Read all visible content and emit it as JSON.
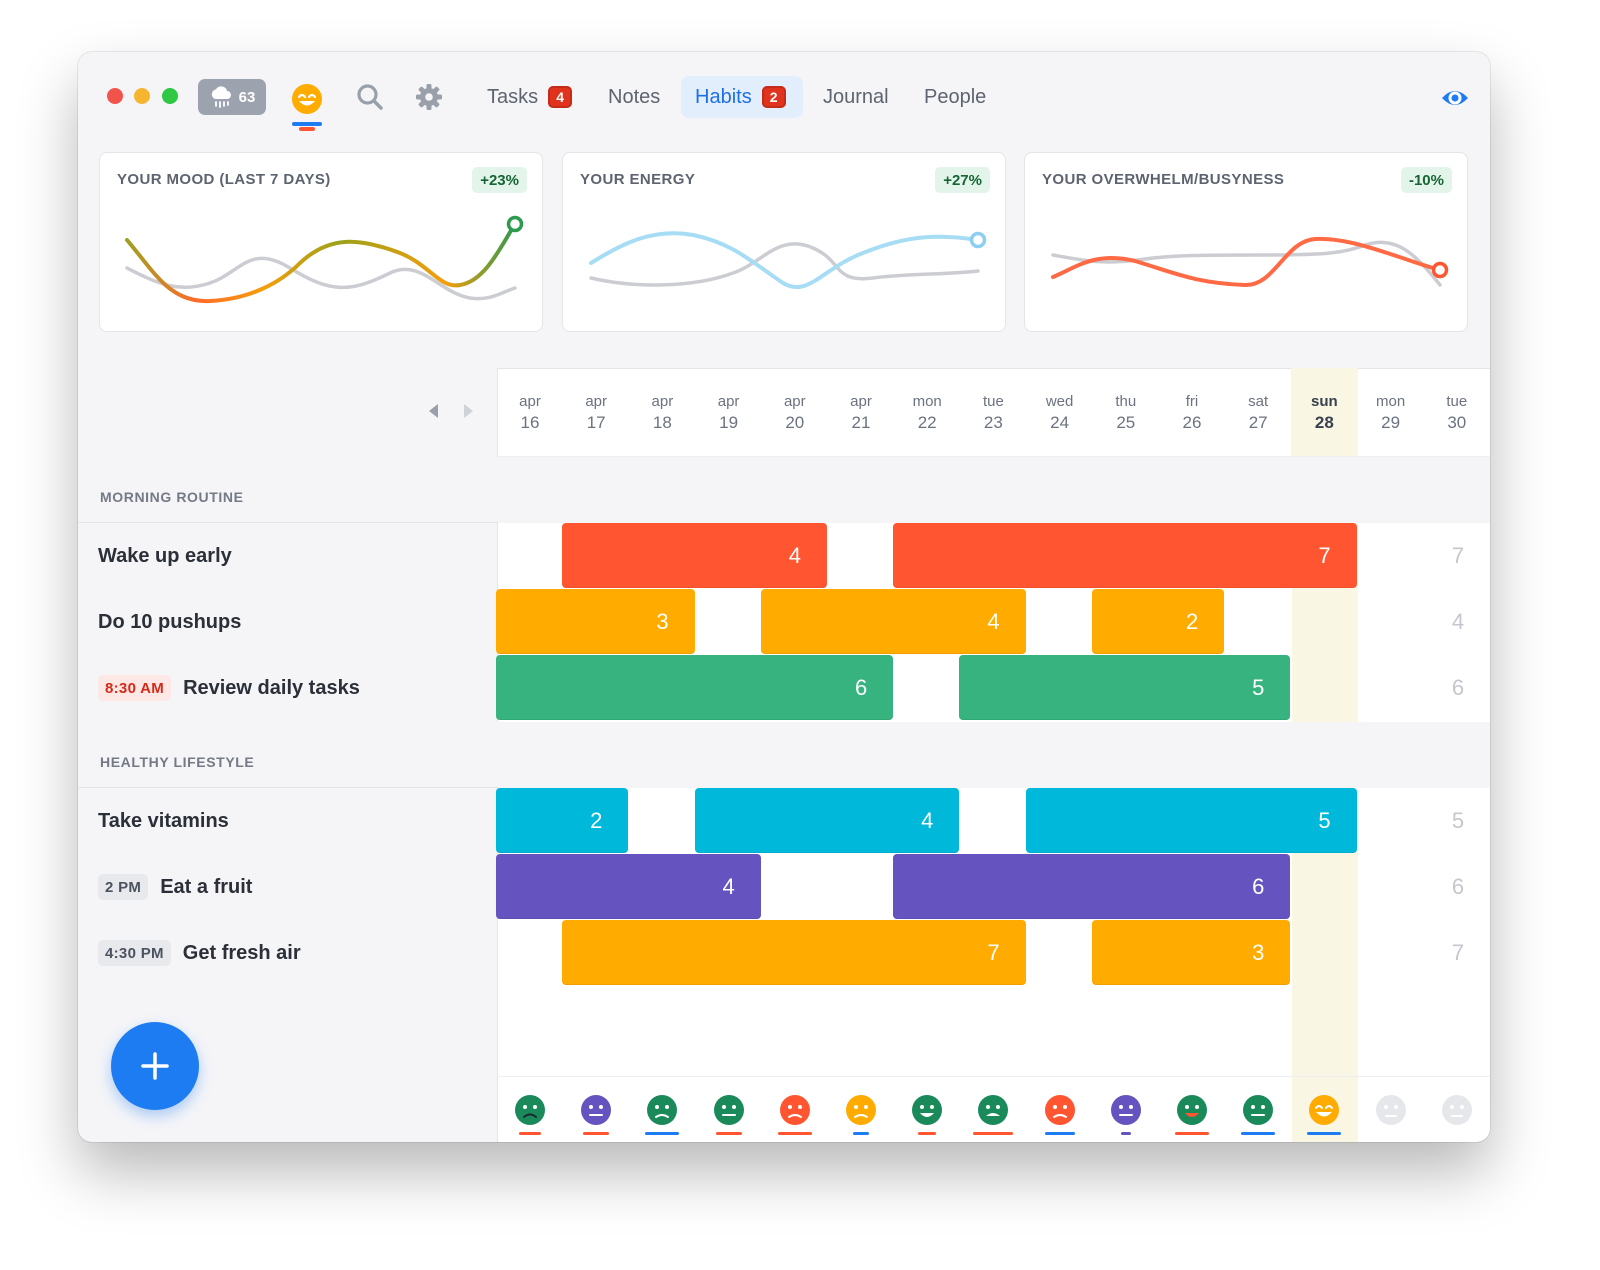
{
  "toolbar": {
    "traffic_lights": [
      "#f2544c",
      "#f6b52f",
      "#2ec843"
    ],
    "weather": {
      "icon": "rain-cloud-icon",
      "temp": "63"
    },
    "current_mood": "happy-face-icon",
    "search_icon": "search-icon",
    "settings_icon": "gear-icon",
    "tabs": [
      {
        "label": "Tasks",
        "badge": "4",
        "active": false
      },
      {
        "label": "Notes",
        "badge": "",
        "active": false
      },
      {
        "label": "Habits",
        "badge": "2",
        "active": true
      },
      {
        "label": "Journal",
        "badge": "",
        "active": false
      },
      {
        "label": "People",
        "badge": "",
        "active": false
      }
    ],
    "eye_icon": "eye-icon",
    "accent": "#1d6fe8"
  },
  "stats": [
    {
      "title": "YOUR MOOD (LAST 7 DAYS)",
      "delta": "+23%"
    },
    {
      "title": "YOUR ENERGY",
      "delta": "+27%"
    },
    {
      "title": "YOUR OVERWHELM/BUSYNESS",
      "delta": "-10%"
    }
  ],
  "calendar": {
    "prev_icon": "chevron-left-icon",
    "next_icon": "chevron-right-icon",
    "days": [
      {
        "top": "apr",
        "num": "16"
      },
      {
        "top": "apr",
        "num": "17"
      },
      {
        "top": "apr",
        "num": "18"
      },
      {
        "top": "apr",
        "num": "19"
      },
      {
        "top": "apr",
        "num": "20"
      },
      {
        "top": "apr",
        "num": "21"
      },
      {
        "top": "mon",
        "num": "22"
      },
      {
        "top": "tue",
        "num": "23"
      },
      {
        "top": "wed",
        "num": "24"
      },
      {
        "top": "thu",
        "num": "25"
      },
      {
        "top": "fri",
        "num": "26"
      },
      {
        "top": "sat",
        "num": "27"
      },
      {
        "top": "sun",
        "num": "28",
        "today": true
      },
      {
        "top": "mon",
        "num": "29"
      },
      {
        "top": "tue",
        "num": "30"
      }
    ]
  },
  "sections": [
    {
      "label": "MORNING ROUTINE",
      "habits": [
        {
          "name": "Wake up early",
          "time": "",
          "total": "7",
          "color": "#ff5631",
          "streaks": [
            {
              "start": 1,
              "end": 4,
              "value": "4"
            },
            {
              "start": 6,
              "end": 12,
              "value": "7"
            }
          ]
        },
        {
          "name": "Do 10 pushups",
          "time": "",
          "total": "4",
          "color": "#ffab00",
          "streaks": [
            {
              "start": 0,
              "end": 2,
              "value": "3"
            },
            {
              "start": 4,
              "end": 7,
              "value": "4"
            },
            {
              "start": 9,
              "end": 10,
              "value": "2"
            }
          ]
        },
        {
          "name": "Review daily tasks",
          "time": "8:30 AM",
          "time_style": "red",
          "total": "6",
          "color": "#36b37e",
          "streaks": [
            {
              "start": 0,
              "end": 5,
              "value": "6"
            },
            {
              "start": 7,
              "end": 11,
              "value": "5"
            }
          ]
        }
      ]
    },
    {
      "label": "HEALTHY LIFESTYLE",
      "habits": [
        {
          "name": "Take vitamins",
          "time": "",
          "total": "5",
          "color": "#00b8d9",
          "streaks": [
            {
              "start": 0,
              "end": 1,
              "value": "2"
            },
            {
              "start": 3,
              "end": 6,
              "value": "4"
            },
            {
              "start": 8,
              "end": 12,
              "value": "5"
            }
          ]
        },
        {
          "name": "Eat a fruit",
          "time": "2 PM",
          "time_style": "gray",
          "total": "6",
          "color": "#6554c0",
          "streaks": [
            {
              "start": 0,
              "end": 3,
              "value": "4"
            },
            {
              "start": 6,
              "end": 11,
              "value": "6"
            }
          ]
        },
        {
          "name": "Get fresh air",
          "time": "4:30 PM",
          "time_style": "gray",
          "total": "7",
          "color": "#ffab00",
          "streaks": [
            {
              "start": 1,
              "end": 7,
              "value": "7"
            },
            {
              "start": 9,
              "end": 11,
              "value": "3"
            }
          ]
        }
      ]
    }
  ],
  "daily_moods": [
    {
      "face": "sad-face-icon",
      "color": "#1b8a5a"
    },
    {
      "face": "meh-face-icon",
      "color": "#6554c0"
    },
    {
      "face": "frown-face-icon",
      "color": "#1b8a5a"
    },
    {
      "face": "meh-face-icon",
      "color": "#1b8a5a"
    },
    {
      "face": "angry-face-icon",
      "color": "#ff5631"
    },
    {
      "face": "frown-face-icon",
      "color": "#ffab00"
    },
    {
      "face": "grin-face-icon",
      "color": "#1b8a5a"
    },
    {
      "face": "dizzy-face-icon",
      "color": "#1b8a5a"
    },
    {
      "face": "frown-face-icon",
      "color": "#ff5631"
    },
    {
      "face": "meh-face-icon",
      "color": "#6554c0"
    },
    {
      "face": "smile-face-icon",
      "color": "#1b8a5a"
    },
    {
      "face": "meh-face-icon",
      "color": "#1b8a5a"
    },
    {
      "face": "happy-face-icon",
      "color": "#ffab00"
    },
    {
      "face": "neutral-face-icon",
      "color": "#e5e7eb"
    },
    {
      "face": "neutral-face-icon",
      "color": "#e5e7eb"
    }
  ],
  "fab": {
    "icon": "plus-icon"
  }
}
